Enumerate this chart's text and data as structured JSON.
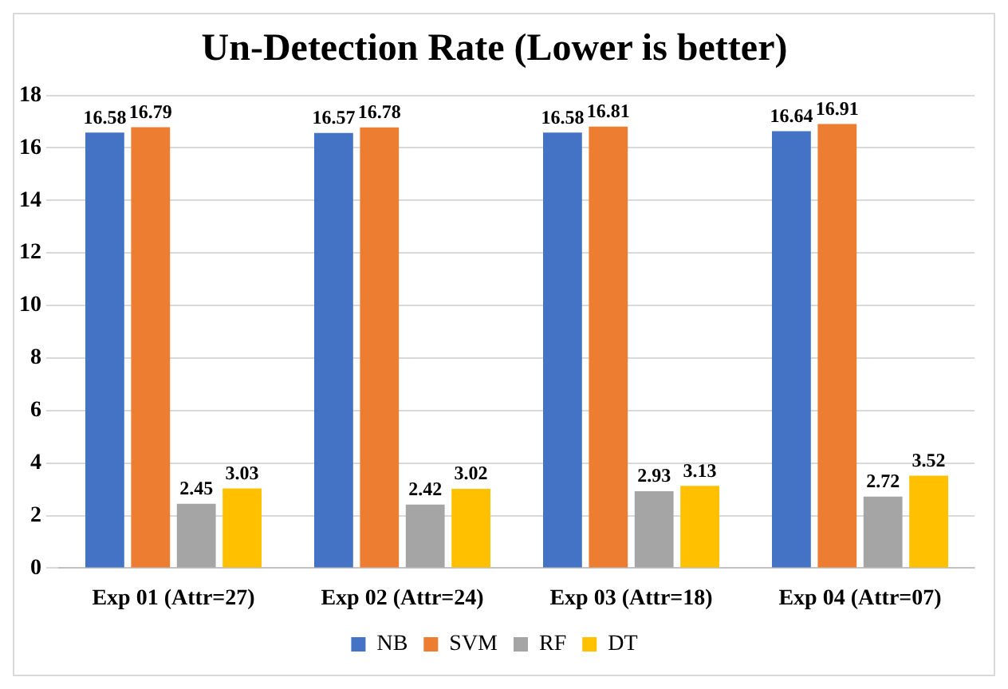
{
  "chart_data": {
    "type": "bar",
    "title": "Un-Detection Rate (Lower is better)",
    "categories": [
      "Exp 01 (Attr=27)",
      "Exp 02 (Attr=24)",
      "Exp 03 (Attr=18)",
      "Exp 04 (Attr=07)"
    ],
    "series": [
      {
        "name": "NB",
        "color": "#4472c4",
        "values": [
          16.58,
          16.57,
          16.58,
          16.64
        ]
      },
      {
        "name": "SVM",
        "color": "#ed7d31",
        "values": [
          16.79,
          16.78,
          16.81,
          16.91
        ]
      },
      {
        "name": "RF",
        "color": "#a5a5a5",
        "values": [
          2.45,
          2.42,
          2.93,
          2.72
        ]
      },
      {
        "name": "DT",
        "color": "#ffc000",
        "values": [
          3.03,
          3.02,
          3.13,
          3.52
        ]
      }
    ],
    "ylim": [
      0,
      18
    ],
    "yticks": [
      0,
      2,
      4,
      6,
      8,
      10,
      12,
      14,
      16,
      18
    ],
    "grid": "y",
    "legend": "bottom",
    "data_labels": true
  }
}
